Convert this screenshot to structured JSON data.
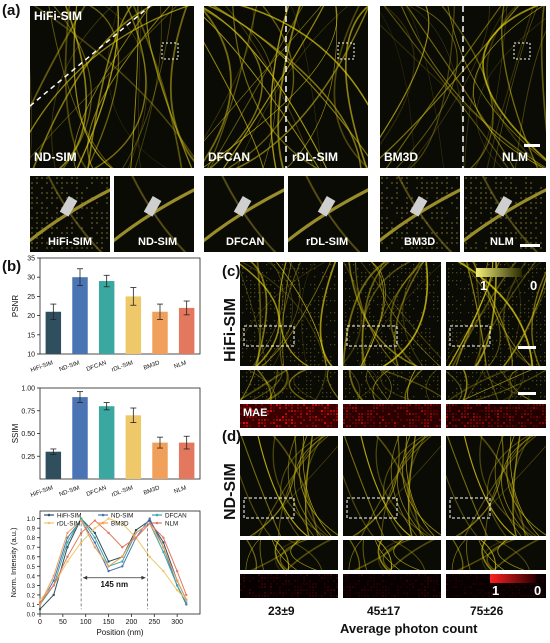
{
  "panels": {
    "a": "(a)",
    "b": "(b)",
    "c": "(c)",
    "d": "(d)"
  },
  "panel_a": {
    "large_labels": [
      "HiFi-SIM",
      "ND-SIM",
      "DFCAN",
      "rDL-SIM",
      "BM3D",
      "NLM"
    ],
    "zoom_labels": [
      "HiFi-SIM",
      "ND-SIM",
      "DFCAN",
      "rDL-SIM",
      "BM3D",
      "NLM"
    ]
  },
  "panel_c": {
    "row_label": "HiFi-SIM",
    "mae_label": "MAE",
    "colorbar_min": "1",
    "colorbar_max": "0"
  },
  "panel_d": {
    "row_label": "ND-SIM",
    "colorbar_min": "1",
    "colorbar_max": "0"
  },
  "photon_counts": [
    "23±9",
    "45±17",
    "75±26"
  ],
  "photon_axis_label": "Average photon count",
  "colors": {
    "HiFi-SIM": "#2f4f5e",
    "ND-SIM": "#4a74b4",
    "DFCAN": "#3aa8a0",
    "rDL-SIM": "#efc86a",
    "BM3D": "#f0a05a",
    "NLM": "#e4785e"
  },
  "chart_data": [
    {
      "type": "bar",
      "categories": [
        "HiFi-SIM",
        "ND-SIM",
        "DFCAN",
        "rDL-SIM",
        "BM3D",
        "NLM"
      ],
      "values": [
        21,
        30,
        29,
        25,
        21,
        22
      ],
      "errors": [
        2,
        2.2,
        1.5,
        2.3,
        2,
        1.8
      ],
      "ylabel": "PSNR",
      "ylim": [
        10,
        35
      ],
      "yticks": [
        10,
        15,
        20,
        25,
        30,
        35
      ]
    },
    {
      "type": "bar",
      "categories": [
        "HiFi-SIM",
        "ND-SIM",
        "DFCAN",
        "rDL-SIM",
        "BM3D",
        "NLM"
      ],
      "values": [
        0.3,
        0.9,
        0.8,
        0.7,
        0.4,
        0.4
      ],
      "errors": [
        0.03,
        0.06,
        0.04,
        0.08,
        0.06,
        0.07
      ],
      "ylabel": "SSIM",
      "ylim": [
        0,
        1.0
      ],
      "yticks": [
        0.25,
        0.5,
        0.75,
        1.0
      ]
    },
    {
      "type": "line",
      "xlabel": "Position (nm)",
      "ylabel": "Norm. Intensity (a.u.)",
      "xlim": [
        0,
        350
      ],
      "ylim": [
        0,
        1.08
      ],
      "xticks": [
        0,
        50,
        100,
        150,
        200,
        250,
        300
      ],
      "yticks": [
        0.0,
        0.1,
        0.2,
        0.3,
        0.4,
        0.5,
        0.6,
        0.7,
        0.8,
        0.9,
        1.0
      ],
      "annotation": "145 nm",
      "legend": [
        "HiFi-SIM",
        "ND-SIM",
        "DFCAN",
        "rDL-SIM",
        "BM3D",
        "NLM"
      ],
      "x": [
        0,
        30,
        60,
        90,
        120,
        150,
        180,
        210,
        240,
        270,
        300,
        320
      ],
      "series": [
        {
          "name": "HiFi-SIM",
          "values": [
            0.05,
            0.2,
            0.7,
            1.0,
            0.85,
            0.55,
            0.6,
            0.88,
            0.98,
            0.75,
            0.35,
            0.15
          ]
        },
        {
          "name": "ND-SIM",
          "values": [
            0.1,
            0.35,
            0.8,
            0.98,
            0.75,
            0.45,
            0.5,
            0.8,
            1.0,
            0.7,
            0.3,
            0.1
          ]
        },
        {
          "name": "DFCAN",
          "values": [
            0.1,
            0.3,
            0.75,
            1.0,
            0.8,
            0.5,
            0.55,
            0.85,
            0.95,
            0.65,
            0.3,
            0.12
          ]
        },
        {
          "name": "rDL-SIM",
          "values": [
            0.15,
            0.3,
            0.55,
            0.75,
            0.9,
            1.0,
            0.95,
            0.8,
            0.6,
            0.45,
            0.25,
            0.15
          ]
        },
        {
          "name": "BM3D",
          "values": [
            0.1,
            0.4,
            0.85,
            0.98,
            0.7,
            0.5,
            0.6,
            0.85,
            0.95,
            0.7,
            0.35,
            0.15
          ]
        },
        {
          "name": "NLM",
          "values": [
            0.12,
            0.3,
            0.6,
            0.85,
            0.98,
            0.85,
            0.7,
            0.8,
            0.95,
            0.8,
            0.45,
            0.2
          ]
        }
      ]
    }
  ]
}
